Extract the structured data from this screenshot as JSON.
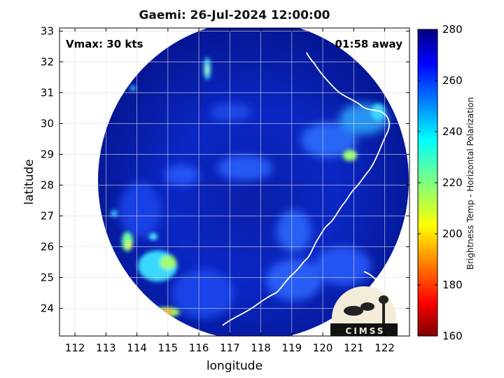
{
  "chart_data": {
    "type": "heatmap",
    "title": "Gaemi: 26-Jul-2024 12:00:00",
    "xlabel": "longitude",
    "ylabel": "latitude",
    "xlim": [
      111.5,
      122.8
    ],
    "ylim": [
      23.1,
      33.1
    ],
    "xticks": [
      "112",
      "113",
      "114",
      "115",
      "116",
      "117",
      "118",
      "119",
      "120",
      "121",
      "122"
    ],
    "yticks": [
      "24",
      "25",
      "26",
      "27",
      "28",
      "29",
      "30",
      "31",
      "32",
      "33"
    ],
    "annotations": {
      "vmax": "Vmax: 30 kts",
      "away": "01:58 away"
    },
    "colorbar": {
      "label": "Brightness Temp - Horizontal Polarization",
      "range": [
        160,
        280
      ],
      "ticks": [
        "280",
        "260",
        "240",
        "220",
        "200",
        "180",
        "160"
      ],
      "colormap": "jet"
    },
    "swath_center": [
      117.5,
      27.6
    ],
    "grid": true,
    "logo_text": "CIMSS"
  }
}
